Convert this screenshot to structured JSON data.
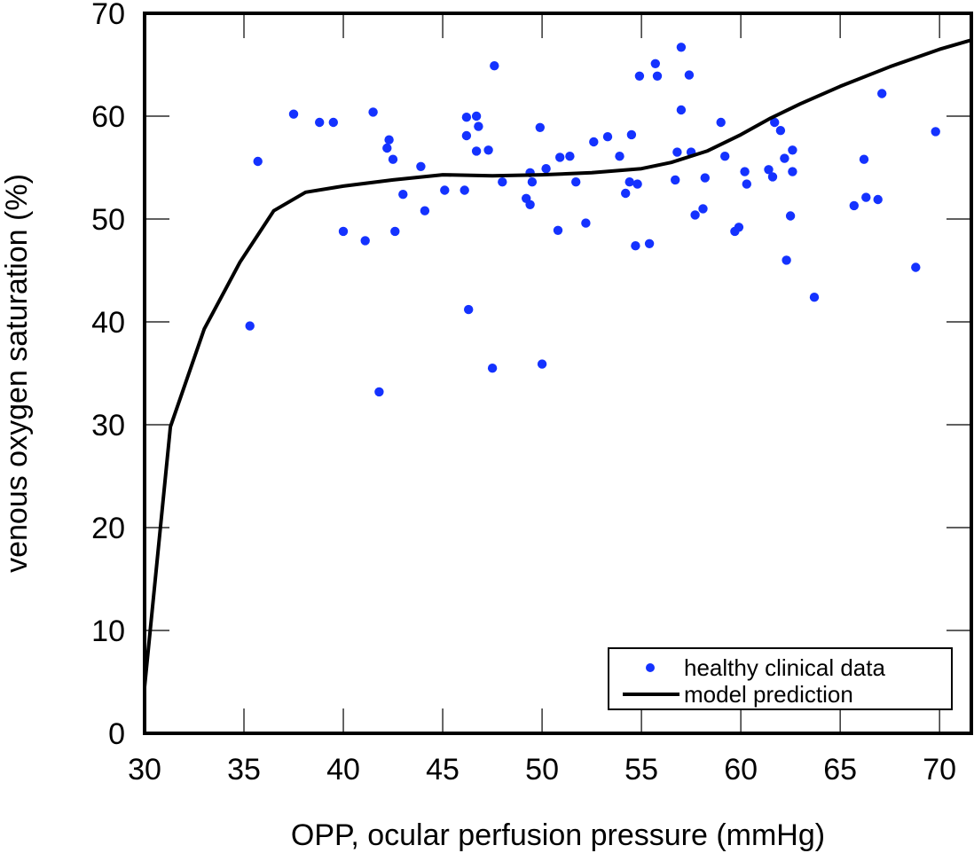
{
  "chart_data": {
    "type": "scatter",
    "title": "",
    "xlabel": "OPP, ocular perfusion pressure (mmHg)",
    "ylabel": "venous oxygen saturation (%)",
    "xlim": [
      30,
      71.6
    ],
    "ylim": [
      0,
      70
    ],
    "xticks": [
      30,
      35,
      40,
      45,
      50,
      55,
      60,
      65,
      70
    ],
    "yticks": [
      0,
      10,
      20,
      30,
      40,
      50,
      60,
      70
    ],
    "grid": false,
    "legend": {
      "position": "bottom-right",
      "entries": [
        {
          "label": "healthy clinical data",
          "marker": "dot",
          "color": "#1432ff"
        },
        {
          "label": "model prediction",
          "marker": "line",
          "color": "#000000"
        }
      ]
    },
    "series": [
      {
        "name": "healthy clinical data",
        "kind": "scatter",
        "color": "#1432ff",
        "points": [
          [
            35.3,
            39.6
          ],
          [
            35.7,
            55.6
          ],
          [
            37.5,
            60.2
          ],
          [
            38.8,
            59.4
          ],
          [
            39.5,
            59.4
          ],
          [
            40.0,
            48.8
          ],
          [
            41.1,
            47.9
          ],
          [
            41.5,
            60.4
          ],
          [
            41.8,
            33.2
          ],
          [
            42.2,
            56.9
          ],
          [
            42.3,
            57.7
          ],
          [
            42.5,
            55.8
          ],
          [
            42.6,
            48.8
          ],
          [
            43.0,
            52.4
          ],
          [
            43.9,
            55.1
          ],
          [
            44.1,
            50.8
          ],
          [
            45.1,
            52.8
          ],
          [
            46.1,
            52.8
          ],
          [
            46.2,
            59.9
          ],
          [
            46.2,
            58.1
          ],
          [
            46.3,
            41.2
          ],
          [
            46.7,
            56.6
          ],
          [
            46.7,
            60.0
          ],
          [
            46.8,
            59.0
          ],
          [
            47.3,
            56.7
          ],
          [
            47.5,
            35.5
          ],
          [
            47.6,
            64.9
          ],
          [
            48.0,
            53.6
          ],
          [
            49.2,
            52.0
          ],
          [
            49.4,
            54.5
          ],
          [
            49.4,
            51.4
          ],
          [
            49.5,
            53.6
          ],
          [
            49.9,
            58.9
          ],
          [
            50.0,
            35.9
          ],
          [
            50.2,
            54.9
          ],
          [
            50.8,
            48.9
          ],
          [
            50.9,
            56.0
          ],
          [
            51.4,
            56.1
          ],
          [
            51.7,
            53.6
          ],
          [
            52.2,
            49.6
          ],
          [
            52.6,
            57.5
          ],
          [
            53.3,
            58.0
          ],
          [
            53.9,
            56.1
          ],
          [
            54.2,
            52.5
          ],
          [
            54.4,
            53.6
          ],
          [
            54.5,
            58.2
          ],
          [
            54.7,
            47.4
          ],
          [
            54.8,
            53.4
          ],
          [
            54.9,
            63.9
          ],
          [
            55.4,
            47.6
          ],
          [
            55.7,
            65.1
          ],
          [
            55.8,
            63.9
          ],
          [
            56.7,
            53.8
          ],
          [
            56.8,
            56.5
          ],
          [
            57.0,
            66.7
          ],
          [
            57.0,
            60.6
          ],
          [
            57.4,
            64.0
          ],
          [
            57.5,
            56.5
          ],
          [
            57.7,
            50.4
          ],
          [
            58.1,
            51.0
          ],
          [
            58.2,
            54.0
          ],
          [
            59.0,
            59.4
          ],
          [
            59.2,
            56.1
          ],
          [
            59.7,
            48.8
          ],
          [
            59.9,
            49.2
          ],
          [
            60.2,
            54.6
          ],
          [
            60.3,
            53.4
          ],
          [
            61.4,
            54.8
          ],
          [
            61.6,
            54.1
          ],
          [
            61.7,
            59.4
          ],
          [
            62.0,
            58.6
          ],
          [
            62.2,
            55.9
          ],
          [
            62.3,
            46.0
          ],
          [
            62.5,
            50.3
          ],
          [
            62.6,
            56.7
          ],
          [
            62.6,
            54.6
          ],
          [
            63.7,
            42.4
          ],
          [
            65.7,
            51.3
          ],
          [
            66.2,
            55.8
          ],
          [
            66.3,
            52.1
          ],
          [
            66.9,
            51.9
          ],
          [
            67.1,
            62.2
          ],
          [
            68.8,
            45.3
          ],
          [
            69.8,
            58.5
          ]
        ]
      },
      {
        "name": "model prediction",
        "kind": "line",
        "color": "#000000",
        "points": [
          [
            30.0,
            4.5
          ],
          [
            31.3,
            29.8
          ],
          [
            33.0,
            39.3
          ],
          [
            34.8,
            45.8
          ],
          [
            36.5,
            50.8
          ],
          [
            38.1,
            52.6
          ],
          [
            40.0,
            53.2
          ],
          [
            42.5,
            53.8
          ],
          [
            45.0,
            54.3
          ],
          [
            47.5,
            54.2
          ],
          [
            50.0,
            54.3
          ],
          [
            52.5,
            54.5
          ],
          [
            55.0,
            54.9
          ],
          [
            56.5,
            55.5
          ],
          [
            58.3,
            56.6
          ],
          [
            60.0,
            58.2
          ],
          [
            61.5,
            59.8
          ],
          [
            63.0,
            61.2
          ],
          [
            65.0,
            62.9
          ],
          [
            67.5,
            64.8
          ],
          [
            70.0,
            66.5
          ],
          [
            71.6,
            67.4
          ]
        ]
      }
    ]
  }
}
